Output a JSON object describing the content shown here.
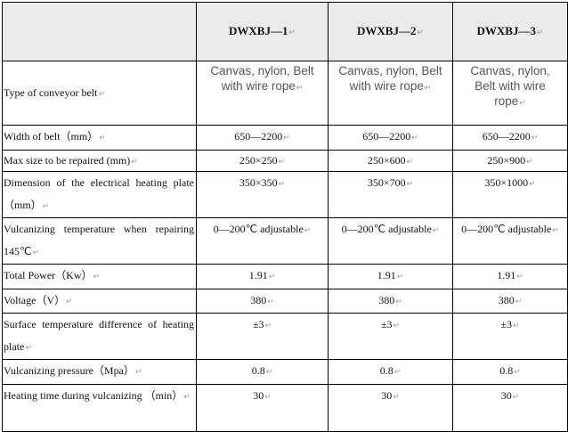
{
  "headers": [
    "",
    "DWXBJ—1",
    "DWXBJ—2",
    "DWXBJ—3"
  ],
  "rows": [
    {
      "label": "Type of conveyor belt",
      "values": [
        "Canvas, nylon, Belt with wire rope",
        "Canvas, nylon, Belt with wire rope",
        "Canvas, nylon, Belt with wire rope"
      ]
    },
    {
      "label": "Width of belt（mm）",
      "values": [
        "650—2200",
        "650—2200",
        "650—2200"
      ]
    },
    {
      "label": "Max size to be repaired (mm)",
      "values": [
        "250×250",
        "250×600",
        "250×900"
      ]
    },
    {
      "label": "Dimension of the electrical heating plate（mm）",
      "values": [
        "350×350",
        "350×700",
        "350×1000"
      ]
    },
    {
      "label": "Vulcanizing temperature when repairing 145℃",
      "values": [
        "0—200℃ adjustable",
        "0—200℃ adjustable",
        "0—200℃ adjustable"
      ]
    },
    {
      "label": "Total Power（Kw）",
      "values": [
        "1.91",
        "1.91",
        "1.91"
      ]
    },
    {
      "label": "Voltage（V）",
      "values": [
        "380",
        "380",
        "380"
      ]
    },
    {
      "label": "Surface temperature difference of heating plate",
      "values": [
        "±3",
        "±3",
        "±3"
      ]
    },
    {
      "label": "Vulcanizing pressure（Mpa）",
      "values": [
        "0.8",
        "0.8",
        "0.8"
      ]
    },
    {
      "label": "Heating time during vulcanizing （min）",
      "values": [
        "30",
        "30",
        "30"
      ]
    }
  ]
}
